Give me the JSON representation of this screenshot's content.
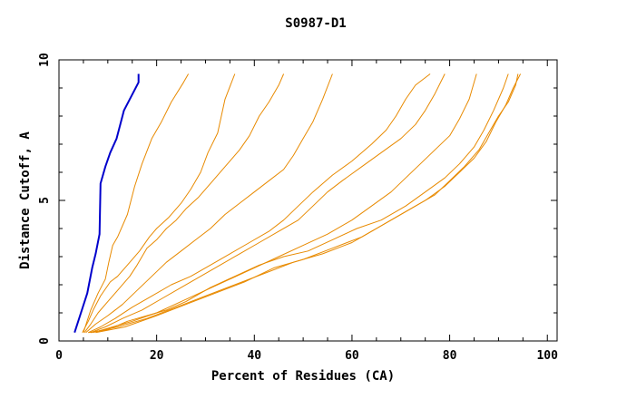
{
  "chart_data": {
    "type": "line",
    "title": "S0987-D1",
    "xlabel": "Percent of Residues (CA)",
    "ylabel": "Distance Cutoff, A",
    "xlim": [
      0,
      102
    ],
    "ylim": [
      0,
      10
    ],
    "x_ticks": [
      0,
      20,
      40,
      60,
      80,
      100
    ],
    "y_ticks": [
      0,
      5,
      10
    ],
    "grid": false,
    "legend": "none",
    "colors": {
      "highlight": "#0000cc",
      "others": "#e88a00"
    },
    "series": [
      {
        "highlight": true,
        "points": [
          [
            3.2,
            0.3
          ],
          [
            4.5,
            1.0
          ],
          [
            5.8,
            1.7
          ],
          [
            6.8,
            2.6
          ],
          [
            7.5,
            3.1
          ],
          [
            8.3,
            3.8
          ],
          [
            8.5,
            5.6
          ],
          [
            9.5,
            6.2
          ],
          [
            10.5,
            6.7
          ],
          [
            11.8,
            7.2
          ],
          [
            13.3,
            8.2
          ],
          [
            16.3,
            9.2
          ],
          [
            16.3,
            9.5
          ]
        ]
      },
      {
        "highlight": false,
        "points": [
          [
            5.0,
            0.3
          ],
          [
            6.5,
            1.1
          ],
          [
            8.0,
            1.7
          ],
          [
            9.5,
            2.2
          ],
          [
            10.2,
            2.8
          ],
          [
            11.0,
            3.4
          ],
          [
            12.0,
            3.7
          ],
          [
            14.0,
            4.5
          ],
          [
            15.5,
            5.5
          ],
          [
            17.0,
            6.3
          ],
          [
            19.0,
            7.2
          ],
          [
            21.0,
            7.8
          ],
          [
            23.0,
            8.5
          ],
          [
            25.5,
            9.2
          ],
          [
            26.5,
            9.5
          ]
        ]
      },
      {
        "highlight": false,
        "points": [
          [
            4.8,
            0.3
          ],
          [
            6.0,
            0.7
          ],
          [
            7.0,
            1.1
          ],
          [
            8.5,
            1.6
          ],
          [
            10.5,
            2.1
          ],
          [
            12.0,
            2.3
          ],
          [
            14.0,
            2.7
          ],
          [
            16.5,
            3.2
          ],
          [
            18.5,
            3.7
          ],
          [
            20.0,
            4.0
          ],
          [
            22.5,
            4.4
          ],
          [
            25.0,
            4.9
          ],
          [
            27.0,
            5.4
          ],
          [
            29.0,
            6.0
          ],
          [
            30.5,
            6.7
          ],
          [
            32.5,
            7.4
          ],
          [
            34.0,
            8.6
          ],
          [
            36.0,
            9.5
          ]
        ]
      },
      {
        "highlight": false,
        "points": [
          [
            5.2,
            0.3
          ],
          [
            6.5,
            0.6
          ],
          [
            8.0,
            1.0
          ],
          [
            10.0,
            1.4
          ],
          [
            12.0,
            1.8
          ],
          [
            14.5,
            2.3
          ],
          [
            16.0,
            2.7
          ],
          [
            18.0,
            3.3
          ],
          [
            20.0,
            3.6
          ],
          [
            22.0,
            4.0
          ],
          [
            24.0,
            4.3
          ],
          [
            26.0,
            4.7
          ],
          [
            28.5,
            5.1
          ],
          [
            31.0,
            5.6
          ],
          [
            34.0,
            6.2
          ],
          [
            37.0,
            6.8
          ],
          [
            39.0,
            7.3
          ],
          [
            41.0,
            8.0
          ],
          [
            43.0,
            8.5
          ],
          [
            45.0,
            9.1
          ],
          [
            46.0,
            9.5
          ]
        ]
      },
      {
        "highlight": false,
        "points": [
          [
            5.5,
            0.3
          ],
          [
            7.5,
            0.6
          ],
          [
            10.0,
            0.9
          ],
          [
            13.0,
            1.3
          ],
          [
            16.0,
            1.8
          ],
          [
            19.0,
            2.3
          ],
          [
            22.0,
            2.8
          ],
          [
            25.0,
            3.2
          ],
          [
            28.0,
            3.6
          ],
          [
            31.0,
            4.0
          ],
          [
            34.0,
            4.5
          ],
          [
            37.0,
            4.9
          ],
          [
            40.0,
            5.3
          ],
          [
            43.0,
            5.7
          ],
          [
            46.0,
            6.1
          ],
          [
            48.0,
            6.6
          ],
          [
            50.0,
            7.2
          ],
          [
            52.0,
            7.8
          ],
          [
            54.0,
            8.6
          ],
          [
            56.0,
            9.5
          ]
        ]
      },
      {
        "highlight": false,
        "points": [
          [
            6.0,
            0.3
          ],
          [
            8.5,
            0.5
          ],
          [
            11.5,
            0.8
          ],
          [
            15.0,
            1.2
          ],
          [
            19.0,
            1.6
          ],
          [
            23.0,
            2.0
          ],
          [
            27.0,
            2.3
          ],
          [
            31.0,
            2.7
          ],
          [
            35.0,
            3.1
          ],
          [
            39.0,
            3.5
          ],
          [
            43.0,
            3.9
          ],
          [
            46.0,
            4.3
          ],
          [
            49.0,
            4.8
          ],
          [
            52.0,
            5.3
          ],
          [
            56.0,
            5.9
          ],
          [
            60.0,
            6.4
          ],
          [
            64.0,
            7.0
          ],
          [
            67.0,
            7.5
          ],
          [
            69.0,
            8.0
          ],
          [
            71.0,
            8.6
          ],
          [
            73.0,
            9.1
          ],
          [
            76.0,
            9.5
          ]
        ]
      },
      {
        "highlight": false,
        "points": [
          [
            6.5,
            0.3
          ],
          [
            9.5,
            0.5
          ],
          [
            13.0,
            0.8
          ],
          [
            17.0,
            1.1
          ],
          [
            21.0,
            1.5
          ],
          [
            25.0,
            1.9
          ],
          [
            29.0,
            2.3
          ],
          [
            33.0,
            2.7
          ],
          [
            37.0,
            3.1
          ],
          [
            41.0,
            3.5
          ],
          [
            45.0,
            3.9
          ],
          [
            49.0,
            4.3
          ],
          [
            52.0,
            4.8
          ],
          [
            55.0,
            5.3
          ],
          [
            58.0,
            5.7
          ],
          [
            62.0,
            6.2
          ],
          [
            66.0,
            6.7
          ],
          [
            70.0,
            7.2
          ],
          [
            73.0,
            7.7
          ],
          [
            75.0,
            8.2
          ],
          [
            77.0,
            8.8
          ],
          [
            79.0,
            9.5
          ]
        ]
      },
      {
        "highlight": false,
        "points": [
          [
            7.0,
            0.3
          ],
          [
            11.0,
            0.5
          ],
          [
            15.0,
            0.7
          ],
          [
            20.0,
            1.0
          ],
          [
            25.0,
            1.4
          ],
          [
            30.0,
            1.8
          ],
          [
            35.0,
            2.2
          ],
          [
            40.0,
            2.6
          ],
          [
            45.0,
            3.0
          ],
          [
            50.0,
            3.4
          ],
          [
            55.0,
            3.8
          ],
          [
            60.0,
            4.3
          ],
          [
            64.0,
            4.8
          ],
          [
            68.0,
            5.3
          ],
          [
            71.0,
            5.8
          ],
          [
            74.0,
            6.3
          ],
          [
            77.0,
            6.8
          ],
          [
            80.0,
            7.3
          ],
          [
            82.0,
            7.9
          ],
          [
            84.0,
            8.6
          ],
          [
            85.5,
            9.5
          ]
        ]
      },
      {
        "highlight": false,
        "points": [
          [
            6.0,
            0.3
          ],
          [
            10.0,
            0.4
          ],
          [
            14.0,
            0.7
          ],
          [
            18.0,
            0.9
          ],
          [
            22.0,
            1.1
          ],
          [
            26.0,
            1.4
          ],
          [
            31.0,
            1.9
          ],
          [
            36.0,
            2.3
          ],
          [
            41.0,
            2.7
          ],
          [
            46.0,
            3.0
          ],
          [
            51.0,
            3.2
          ],
          [
            56.0,
            3.6
          ],
          [
            61.0,
            4.0
          ],
          [
            66.0,
            4.3
          ],
          [
            71.0,
            4.8
          ],
          [
            75.0,
            5.3
          ],
          [
            79.0,
            5.8
          ],
          [
            82.0,
            6.3
          ],
          [
            85.0,
            6.9
          ],
          [
            87.0,
            7.5
          ],
          [
            89.0,
            8.2
          ],
          [
            91.0,
            9.0
          ],
          [
            92.0,
            9.5
          ]
        ]
      },
      {
        "highlight": false,
        "points": [
          [
            6.5,
            0.3
          ],
          [
            12.0,
            0.5
          ],
          [
            18.0,
            0.8
          ],
          [
            24.0,
            1.2
          ],
          [
            30.0,
            1.6
          ],
          [
            36.0,
            2.0
          ],
          [
            42.0,
            2.4
          ],
          [
            48.0,
            2.8
          ],
          [
            54.0,
            3.1
          ],
          [
            60.0,
            3.5
          ],
          [
            65.0,
            4.0
          ],
          [
            69.0,
            4.4
          ],
          [
            73.0,
            4.8
          ],
          [
            77.0,
            5.2
          ],
          [
            80.0,
            5.7
          ],
          [
            83.0,
            6.2
          ],
          [
            86.0,
            6.8
          ],
          [
            88.0,
            7.4
          ],
          [
            90.0,
            8.0
          ],
          [
            92.0,
            8.5
          ],
          [
            93.5,
            9.1
          ],
          [
            94.0,
            9.5
          ]
        ]
      },
      {
        "highlight": false,
        "points": [
          [
            7.5,
            0.3
          ],
          [
            13.5,
            0.5
          ],
          [
            20.0,
            0.9
          ],
          [
            26.0,
            1.3
          ],
          [
            32.0,
            1.7
          ],
          [
            38.0,
            2.1
          ],
          [
            44.0,
            2.6
          ],
          [
            50.0,
            2.9
          ],
          [
            56.0,
            3.3
          ],
          [
            62.0,
            3.7
          ],
          [
            67.0,
            4.2
          ],
          [
            71.0,
            4.6
          ],
          [
            75.0,
            5.0
          ],
          [
            79.0,
            5.5
          ],
          [
            82.0,
            6.0
          ],
          [
            85.0,
            6.5
          ],
          [
            87.5,
            7.1
          ],
          [
            89.5,
            7.8
          ],
          [
            91.5,
            8.4
          ],
          [
            93.0,
            9.0
          ],
          [
            94.5,
            9.5
          ]
        ]
      }
    ]
  }
}
